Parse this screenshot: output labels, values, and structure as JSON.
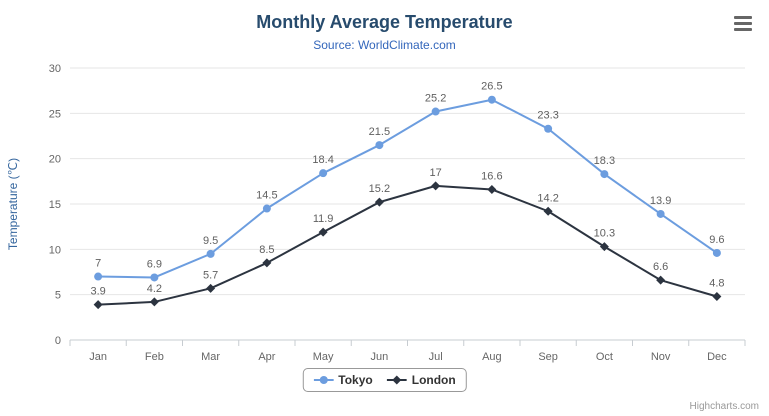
{
  "header": {
    "title": "Monthly Average Temperature",
    "subtitle": "Source: WorldClimate.com"
  },
  "chart_data": {
    "type": "line",
    "title": "Monthly Average Temperature",
    "subtitle": "Source: WorldClimate.com",
    "categories": [
      "Jan",
      "Feb",
      "Mar",
      "Apr",
      "May",
      "Jun",
      "Jul",
      "Aug",
      "Sep",
      "Oct",
      "Nov",
      "Dec"
    ],
    "series": [
      {
        "name": "Tokyo",
        "color": "#6c9ddf",
        "marker": "circle",
        "values": [
          7,
          6.9,
          9.5,
          14.5,
          18.4,
          21.5,
          25.2,
          26.5,
          23.3,
          18.3,
          13.9,
          9.6
        ]
      },
      {
        "name": "London",
        "color": "#2c3440",
        "marker": "diamond",
        "values": [
          3.9,
          4.2,
          5.7,
          8.5,
          11.9,
          15.2,
          17,
          16.6,
          14.2,
          10.3,
          6.6,
          4.8
        ]
      }
    ],
    "xlabel": "",
    "ylabel": "Temperature (℃)",
    "ylim": [
      0,
      30
    ],
    "yticks": [
      0,
      5,
      10,
      15,
      20,
      25,
      30
    ],
    "grid": true,
    "data_labels": true,
    "legend_position": "bottom"
  },
  "colors": {
    "title": "#274b6d",
    "subtitle": "#3366bb",
    "axis_title": "#35669e",
    "axis_label": "#666666",
    "grid": "#e6e6e6",
    "axis_line": "#c7ccd1",
    "data_label": "#606060",
    "legend_border": "#999999",
    "credits": "#999999"
  },
  "credits": {
    "text": "Highcharts.com"
  }
}
